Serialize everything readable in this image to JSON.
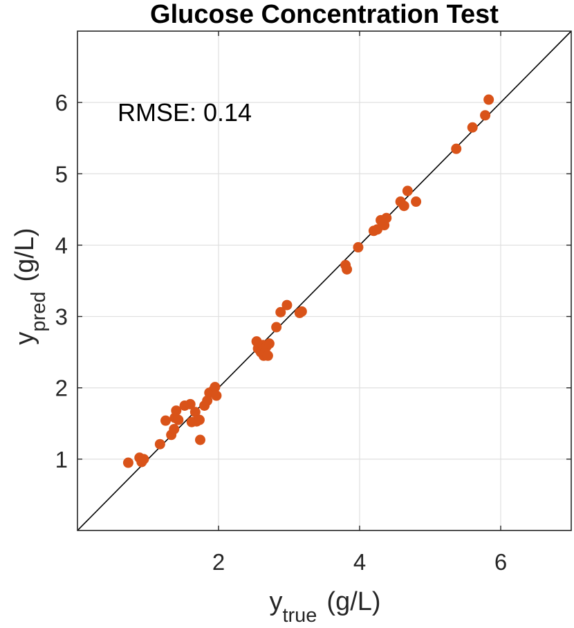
{
  "chart_data": {
    "type": "scatter",
    "title": "Glucose Concentration Test",
    "xlabel": {
      "base": "y",
      "sub": "true",
      "unit": "(g/L)"
    },
    "ylabel": {
      "base": "y",
      "sub": "pred",
      "unit": "(g/L)"
    },
    "xlim": [
      0,
      7
    ],
    "ylim": [
      0,
      7
    ],
    "xticks": [
      2,
      4,
      6
    ],
    "yticks": [
      1,
      2,
      3,
      4,
      5,
      6
    ],
    "grid": true,
    "annotation": "RMSE: 0.14",
    "reference_line": {
      "from": [
        0,
        0
      ],
      "to": [
        7,
        7
      ],
      "color": "#000000"
    },
    "marker_color": "#D95319",
    "points": [
      [
        0.72,
        0.95
      ],
      [
        0.88,
        1.02
      ],
      [
        0.91,
        0.96
      ],
      [
        0.94,
        1.0
      ],
      [
        1.17,
        1.21
      ],
      [
        1.25,
        1.54
      ],
      [
        1.33,
        1.34
      ],
      [
        1.37,
        1.42
      ],
      [
        1.38,
        1.58
      ],
      [
        1.4,
        1.68
      ],
      [
        1.43,
        1.55
      ],
      [
        1.52,
        1.75
      ],
      [
        1.6,
        1.77
      ],
      [
        1.62,
        1.52
      ],
      [
        1.67,
        1.66
      ],
      [
        1.69,
        1.53
      ],
      [
        1.73,
        1.55
      ],
      [
        1.74,
        1.27
      ],
      [
        1.8,
        1.75
      ],
      [
        1.84,
        1.82
      ],
      [
        1.87,
        1.93
      ],
      [
        1.93,
        1.97
      ],
      [
        1.95,
        2.01
      ],
      [
        1.97,
        1.89
      ],
      [
        2.54,
        2.65
      ],
      [
        2.56,
        2.55
      ],
      [
        2.6,
        2.5
      ],
      [
        2.63,
        2.6
      ],
      [
        2.64,
        2.45
      ],
      [
        2.66,
        2.5
      ],
      [
        2.68,
        2.58
      ],
      [
        2.7,
        2.45
      ],
      [
        2.72,
        2.62
      ],
      [
        2.82,
        2.85
      ],
      [
        2.88,
        3.06
      ],
      [
        2.97,
        3.16
      ],
      [
        3.15,
        3.05
      ],
      [
        3.18,
        3.07
      ],
      [
        3.8,
        3.72
      ],
      [
        3.82,
        3.66
      ],
      [
        3.98,
        3.97
      ],
      [
        4.2,
        4.2
      ],
      [
        4.25,
        4.22
      ],
      [
        4.3,
        4.35
      ],
      [
        4.35,
        4.28
      ],
      [
        4.38,
        4.38
      ],
      [
        4.58,
        4.61
      ],
      [
        4.63,
        4.55
      ],
      [
        4.68,
        4.76
      ],
      [
        4.8,
        4.61
      ],
      [
        5.37,
        5.35
      ],
      [
        5.6,
        5.65
      ],
      [
        5.78,
        5.82
      ],
      [
        5.83,
        6.04
      ]
    ]
  }
}
